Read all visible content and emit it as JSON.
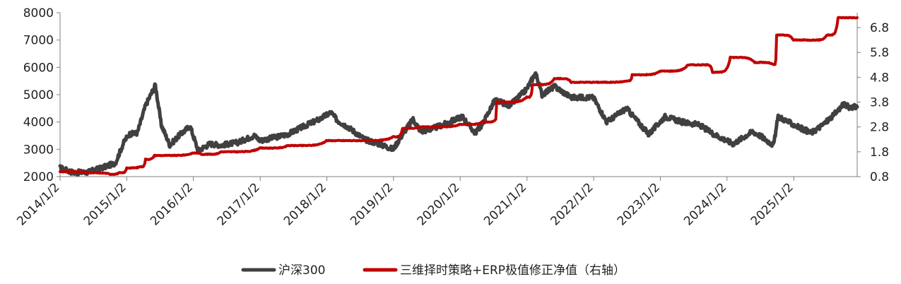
{
  "chart_data": {
    "type": "line",
    "title": "",
    "xlabel": "",
    "ylabel": "",
    "x_ticks": [
      "2014/1/2",
      "2015/1/2",
      "2016/1/2",
      "2017/1/2",
      "2018/1/2",
      "2019/1/2",
      "2020/1/2",
      "2021/1/2",
      "2022/1/2",
      "2023/1/2",
      "2024/1/2",
      "2025/1/2"
    ],
    "x_range": [
      "2014-01-02",
      "2025-12-15"
    ],
    "y_left": {
      "ticks": [
        "2000",
        "3000",
        "4000",
        "5000",
        "6000",
        "7000",
        "8000"
      ],
      "ylim": [
        2000,
        8000
      ]
    },
    "y_right": {
      "ticks": [
        "0.8",
        "1.8",
        "2.8",
        "3.8",
        "4.8",
        "5.8",
        "6.8"
      ],
      "ylim": [
        0.8,
        7.4
      ]
    },
    "legend_position": "bottom-center",
    "series": [
      {
        "name": "沪深300",
        "axis": "left",
        "color": "#404040",
        "points": [
          [
            "2014-01-02",
            2320
          ],
          [
            "2014-03-15",
            2150
          ],
          [
            "2014-06-01",
            2160
          ],
          [
            "2014-09-01",
            2350
          ],
          [
            "2014-11-01",
            2500
          ],
          [
            "2014-12-20",
            3300
          ],
          [
            "2015-01-15",
            3550
          ],
          [
            "2015-03-01",
            3600
          ],
          [
            "2015-04-15",
            4600
          ],
          [
            "2015-06-08",
            5350
          ],
          [
            "2015-07-10",
            3900
          ],
          [
            "2015-08-26",
            3150
          ],
          [
            "2015-10-15",
            3500
          ],
          [
            "2015-12-15",
            3850
          ],
          [
            "2016-01-28",
            2950
          ],
          [
            "2016-04-01",
            3200
          ],
          [
            "2016-06-01",
            3150
          ],
          [
            "2016-09-01",
            3250
          ],
          [
            "2016-11-30",
            3500
          ],
          [
            "2017-01-02",
            3320
          ],
          [
            "2017-04-01",
            3450
          ],
          [
            "2017-06-01",
            3550
          ],
          [
            "2017-09-01",
            3850
          ],
          [
            "2017-11-22",
            4100
          ],
          [
            "2018-01-24",
            4350
          ],
          [
            "2018-03-01",
            4050
          ],
          [
            "2018-05-01",
            3800
          ],
          [
            "2018-06-30",
            3500
          ],
          [
            "2018-08-01",
            3350
          ],
          [
            "2018-10-15",
            3200
          ],
          [
            "2018-12-31",
            3000
          ],
          [
            "2019-02-25",
            3600
          ],
          [
            "2019-04-19",
            4100
          ],
          [
            "2019-06-01",
            3650
          ],
          [
            "2019-08-01",
            3750
          ],
          [
            "2019-10-01",
            3900
          ],
          [
            "2020-01-14",
            4200
          ],
          [
            "2020-03-23",
            3600
          ],
          [
            "2020-05-01",
            3900
          ],
          [
            "2020-07-10",
            4800
          ],
          [
            "2020-09-30",
            4600
          ],
          [
            "2020-12-31",
            5200
          ],
          [
            "2021-02-18",
            5800
          ],
          [
            "2021-03-25",
            5000
          ],
          [
            "2021-06-01",
            5300
          ],
          [
            "2021-09-01",
            4900
          ],
          [
            "2021-12-31",
            4900
          ],
          [
            "2022-03-15",
            4000
          ],
          [
            "2022-06-30",
            4500
          ],
          [
            "2022-10-31",
            3550
          ],
          [
            "2023-01-28",
            4200
          ],
          [
            "2023-05-01",
            4000
          ],
          [
            "2023-08-01",
            3900
          ],
          [
            "2023-10-23",
            3550
          ],
          [
            "2024-02-05",
            3200
          ],
          [
            "2024-05-20",
            3650
          ],
          [
            "2024-07-01",
            3500
          ],
          [
            "2024-09-13",
            3150
          ],
          [
            "2024-10-08",
            4200
          ],
          [
            "2024-12-31",
            3900
          ],
          [
            "2025-04-07",
            3600
          ],
          [
            "2025-06-01",
            3850
          ],
          [
            "2025-08-01",
            4200
          ],
          [
            "2025-10-01",
            4650
          ],
          [
            "2025-11-01",
            4550
          ],
          [
            "2025-12-15",
            4550
          ]
        ]
      },
      {
        "name": "三维择时策略+ERP极值修正净值（右轴）",
        "axis": "right",
        "color": "#C00000",
        "points": [
          [
            "2014-01-02",
            1.0
          ],
          [
            "2014-06-01",
            0.95
          ],
          [
            "2014-10-01",
            0.9
          ],
          [
            "2014-11-20",
            0.95
          ],
          [
            "2015-01-02",
            1.15
          ],
          [
            "2015-03-15",
            1.2
          ],
          [
            "2015-04-15",
            1.5
          ],
          [
            "2015-06-01",
            1.65
          ],
          [
            "2015-12-31",
            1.75
          ],
          [
            "2016-02-15",
            1.7
          ],
          [
            "2016-06-01",
            1.8
          ],
          [
            "2016-12-31",
            1.95
          ],
          [
            "2017-06-01",
            2.05
          ],
          [
            "2017-12-31",
            2.25
          ],
          [
            "2018-06-01",
            2.25
          ],
          [
            "2018-12-31",
            2.4
          ],
          [
            "2019-02-20",
            2.75
          ],
          [
            "2019-06-01",
            2.8
          ],
          [
            "2019-12-31",
            2.9
          ],
          [
            "2020-05-01",
            3.0
          ],
          [
            "2020-07-15",
            3.1
          ],
          [
            "2020-07-20",
            3.8
          ],
          [
            "2020-12-31",
            4.0
          ],
          [
            "2021-02-01",
            4.5
          ],
          [
            "2021-06-01",
            4.75
          ],
          [
            "2021-09-01",
            4.6
          ],
          [
            "2021-12-31",
            4.6
          ],
          [
            "2022-06-30",
            4.65
          ],
          [
            "2022-08-01",
            4.9
          ],
          [
            "2022-12-31",
            5.05
          ],
          [
            "2023-06-01",
            5.3
          ],
          [
            "2023-09-01",
            5.3
          ],
          [
            "2023-10-15",
            5.0
          ],
          [
            "2024-01-20",
            5.6
          ],
          [
            "2024-06-01",
            5.4
          ],
          [
            "2024-09-13",
            5.3
          ],
          [
            "2024-09-30",
            6.5
          ],
          [
            "2024-12-31",
            6.3
          ],
          [
            "2025-04-01",
            6.3
          ],
          [
            "2025-07-01",
            6.5
          ],
          [
            "2025-09-01",
            7.2
          ],
          [
            "2025-12-15",
            7.2
          ]
        ]
      }
    ]
  }
}
